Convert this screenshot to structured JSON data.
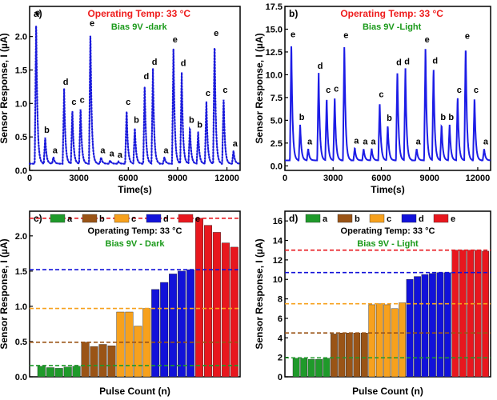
{
  "colors": {
    "trace_dark": "#1a1adb",
    "trace_light": "#1c1ce6",
    "title_red": "#ee1c1c",
    "bias_green": "#1a9a1a",
    "a": "#1f9a2a",
    "b": "#9a5416",
    "c": "#f7a11d",
    "d": "#1212d9",
    "e": "#e8171e"
  },
  "chart_data": [
    {
      "panel": "a)",
      "type": "line",
      "title": "Operating Temp: 33 °C",
      "subtitle": "Bias 9V -dark",
      "xlabel": "Time(s)",
      "ylabel": "Sensor Response, I (µA)",
      "xlim": [
        0,
        12800
      ],
      "ylim": [
        0,
        2.45
      ],
      "xticks": [
        0,
        3000,
        6000,
        9000,
        12000
      ],
      "xticklabels": [
        "0",
        "3000",
        "6000",
        "9000",
        "12000"
      ],
      "yticks": [
        0,
        0.5,
        1.0,
        1.5,
        2.0
      ],
      "yticklabels": [
        "0.0",
        "0.5",
        "1.0",
        "1.5",
        "2.0"
      ],
      "baseline": 0.1,
      "pulse_times": [
        400,
        950,
        1450,
        2100,
        2600,
        3100,
        3700,
        4350,
        4900,
        5400,
        5900,
        6400,
        7000,
        7500,
        8200,
        8750,
        9250,
        9750,
        10250,
        10750,
        11250,
        11800,
        12400
      ],
      "pulse_peaks": [
        2.25,
        0.5,
        0.2,
        1.22,
        0.92,
        0.95,
        2.1,
        0.2,
        0.15,
        0.13,
        0.92,
        0.65,
        1.3,
        1.52,
        0.2,
        1.85,
        1.5,
        0.65,
        0.58,
        1.05,
        1.95,
        1.1,
        0.3
      ],
      "pulse_labels": [
        "e",
        "b",
        "a",
        "d",
        "c",
        "c",
        "e",
        "a",
        "a",
        "a",
        "c",
        "b",
        "d",
        "d",
        "a",
        "e",
        "d",
        "b",
        "b",
        "c",
        "e",
        "c",
        "a"
      ],
      "style": "dotted"
    },
    {
      "panel": "b)",
      "type": "line",
      "title": "Operating Temp: 33 °C",
      "subtitle": "Bias 9V -Light",
      "xlabel": "Time(s)",
      "ylabel": "Sensor Response, I (µA)",
      "xlim": [
        0,
        12800
      ],
      "ylim": [
        -0.5,
        17.5
      ],
      "xticks": [
        0,
        3000,
        6000,
        9000,
        12000
      ],
      "xticklabels": [
        "0",
        "3000",
        "6000",
        "9000",
        "12000"
      ],
      "yticks": [
        0,
        2.5,
        5.0,
        7.5,
        10.0,
        12.5,
        15.0,
        17.5
      ],
      "yticklabels": [
        "0.0",
        "2.5",
        "5.0",
        "7.5",
        "10.0",
        "12.5",
        "15.0",
        "17.5"
      ],
      "baseline": 0.6,
      "pulse_times": [
        400,
        950,
        1450,
        2100,
        2600,
        3100,
        3700,
        4350,
        4900,
        5400,
        5900,
        6400,
        7000,
        7500,
        8200,
        8750,
        9250,
        9750,
        10250,
        10750,
        11250,
        11800,
        12400
      ],
      "pulse_peaks": [
        13.7,
        4.6,
        1.9,
        10.2,
        7.6,
        7.7,
        13.6,
        2.0,
        1.9,
        1.9,
        7.1,
        4.5,
        10.6,
        10.7,
        1.9,
        13.1,
        10.8,
        4.6,
        4.6,
        7.6,
        13.5,
        7.6,
        1.9
      ],
      "pulse_labels": [
        "e",
        "b",
        "a",
        "d",
        "c",
        "c",
        "e",
        "a",
        "a",
        "a",
        "c",
        "b",
        "d",
        "d",
        "a",
        "e",
        "d",
        "b",
        "b",
        "c",
        "e",
        "c",
        "a"
      ],
      "style": "solid"
    },
    {
      "panel": "c)",
      "type": "bar",
      "title": "Operating Temp: 33 °C",
      "subtitle": "Bias 9V - Dark",
      "xlabel": "Pulse Count (n)",
      "ylabel": "Sensor Response, I (µA)",
      "ylim": [
        0,
        2.35
      ],
      "yticks": [
        0,
        0.5,
        1.0,
        1.5,
        2.0
      ],
      "yticklabels": [
        "0.0",
        "0.5",
        "1.0",
        "1.5",
        "2.0"
      ],
      "legend": [
        "a",
        "b",
        "c",
        "d",
        "e"
      ],
      "series": [
        {
          "name": "a",
          "values": [
            0.15,
            0.13,
            0.12,
            0.14,
            0.15
          ]
        },
        {
          "name": "b",
          "values": [
            0.49,
            0.43,
            0.46,
            0.44
          ]
        },
        {
          "name": "c",
          "values": [
            0.92,
            0.92,
            0.72,
            0.97
          ]
        },
        {
          "name": "d",
          "values": [
            1.24,
            1.34,
            1.46,
            1.5,
            1.52
          ]
        },
        {
          "name": "e",
          "values": [
            2.25,
            2.15,
            2.05,
            1.9,
            1.84
          ]
        }
      ],
      "reference_lines": [
        0.16,
        0.49,
        0.97,
        1.52,
        2.25
      ]
    },
    {
      "panel": "d)",
      "type": "bar",
      "title": "Operating Temp: 33 °C",
      "subtitle": "Bias 9V - Light",
      "xlabel": "Pulse Count (n)",
      "ylabel": "Sensor Response, I (µA)",
      "ylim": [
        0,
        17
      ],
      "yticks": [
        0,
        2,
        4,
        6,
        8,
        10,
        12,
        14,
        16
      ],
      "yticklabels": [
        "0",
        "2",
        "4",
        "6",
        "8",
        "10",
        "12",
        "14",
        "16"
      ],
      "legend": [
        "a",
        "b",
        "c",
        "d",
        "e"
      ],
      "series": [
        {
          "name": "a",
          "values": [
            1.9,
            1.9,
            1.8,
            1.8,
            1.9
          ]
        },
        {
          "name": "b",
          "values": [
            4.4,
            4.5,
            4.5,
            4.5,
            4.5
          ]
        },
        {
          "name": "c",
          "values": [
            7.4,
            7.5,
            7.4,
            7.0,
            7.6
          ]
        },
        {
          "name": "d",
          "values": [
            10.0,
            10.3,
            10.5,
            10.6,
            10.7,
            10.7
          ]
        },
        {
          "name": "e",
          "values": [
            13.0,
            13.0,
            13.0,
            13.0,
            12.9
          ]
        }
      ],
      "reference_lines": [
        1.95,
        4.5,
        7.5,
        10.7,
        13.0
      ]
    }
  ]
}
